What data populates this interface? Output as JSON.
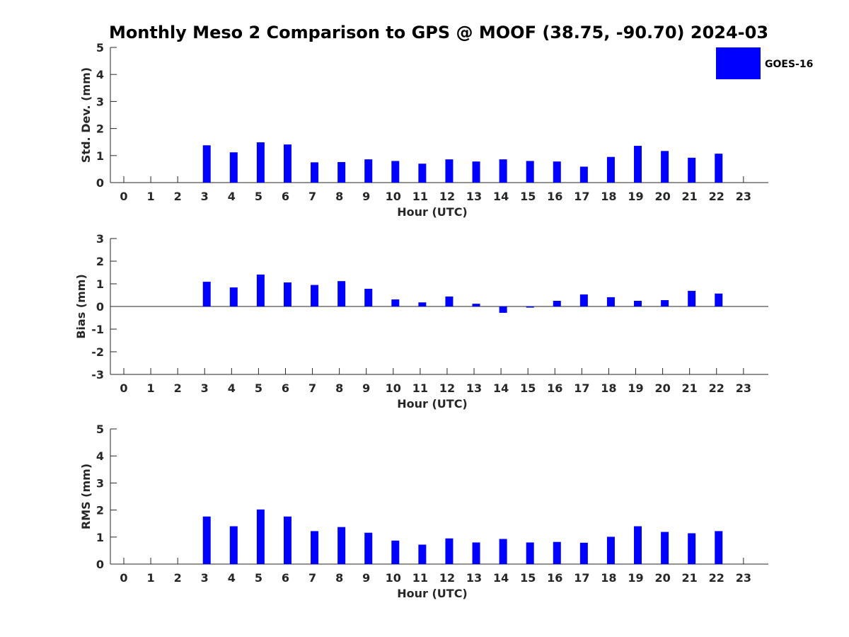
{
  "figure": {
    "title": "Monthly Meso 2 Comparison to GPS @ MOOF (38.75, -90.70) 2024-03"
  },
  "legend": {
    "label": "GOES-16",
    "placement": "top-right"
  },
  "colors": {
    "bar": "#0000ff",
    "axis": "#262626"
  },
  "chart_data": [
    {
      "type": "bar",
      "title": "Monthly Meso 2 Comparison to GPS @ MOOF (38.75, -90.70) 2024-03",
      "xlabel": "Hour (UTC)",
      "ylabel": "Std. Dev. (mm)",
      "ylim": [
        0,
        5
      ],
      "yticks": [
        0,
        1,
        2,
        3,
        4,
        5
      ],
      "categories": [
        "0",
        "1",
        "2",
        "3",
        "4",
        "5",
        "6",
        "7",
        "8",
        "9",
        "10",
        "11",
        "12",
        "13",
        "14",
        "15",
        "16",
        "17",
        "18",
        "19",
        "20",
        "21",
        "22",
        "23"
      ],
      "series": [
        {
          "name": "GOES-16",
          "values": [
            null,
            null,
            null,
            1.38,
            1.12,
            1.49,
            1.41,
            0.75,
            0.76,
            0.86,
            0.8,
            0.7,
            0.86,
            0.78,
            0.86,
            0.8,
            0.78,
            0.59,
            0.95,
            1.36,
            1.17,
            0.92,
            1.07,
            null
          ]
        }
      ],
      "grid": false,
      "legend": "top-right"
    },
    {
      "type": "bar",
      "xlabel": "Hour (UTC)",
      "ylabel": "Bias (mm)",
      "ylim": [
        -3,
        3
      ],
      "yticks": [
        -3,
        -2,
        -1,
        0,
        1,
        2,
        3
      ],
      "zero_line": true,
      "categories": [
        "0",
        "1",
        "2",
        "3",
        "4",
        "5",
        "6",
        "7",
        "8",
        "9",
        "10",
        "11",
        "12",
        "13",
        "14",
        "15",
        "16",
        "17",
        "18",
        "19",
        "20",
        "21",
        "22",
        "23"
      ],
      "series": [
        {
          "name": "GOES-16",
          "values": [
            null,
            null,
            null,
            1.09,
            0.84,
            1.41,
            1.06,
            0.95,
            1.12,
            0.78,
            0.31,
            0.18,
            0.44,
            0.12,
            -0.28,
            -0.05,
            0.25,
            0.53,
            0.41,
            0.25,
            0.28,
            0.69,
            0.57,
            null
          ]
        }
      ],
      "grid": false
    },
    {
      "type": "bar",
      "xlabel": "Hour (UTC)",
      "ylabel": "RMS (mm)",
      "ylim": [
        0,
        5
      ],
      "yticks": [
        0,
        1,
        2,
        3,
        4,
        5
      ],
      "categories": [
        "0",
        "1",
        "2",
        "3",
        "4",
        "5",
        "6",
        "7",
        "8",
        "9",
        "10",
        "11",
        "12",
        "13",
        "14",
        "15",
        "16",
        "17",
        "18",
        "19",
        "20",
        "21",
        "22",
        "23"
      ],
      "series": [
        {
          "name": "GOES-16",
          "values": [
            null,
            null,
            null,
            1.76,
            1.4,
            2.02,
            1.76,
            1.22,
            1.37,
            1.16,
            0.87,
            0.72,
            0.95,
            0.8,
            0.93,
            0.8,
            0.82,
            0.79,
            1.01,
            1.4,
            1.19,
            1.14,
            1.22,
            null
          ]
        }
      ],
      "grid": false
    }
  ]
}
